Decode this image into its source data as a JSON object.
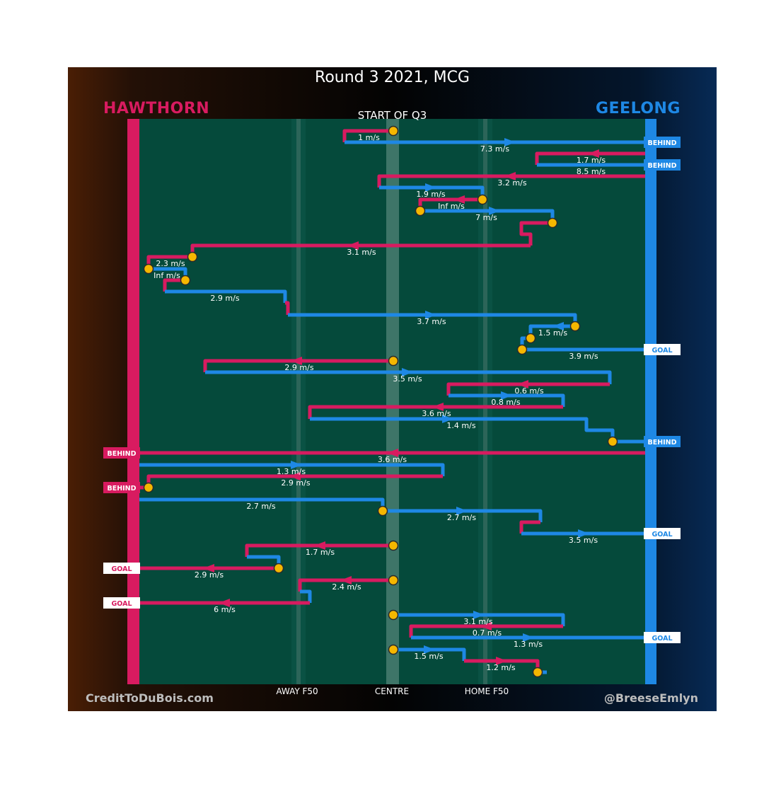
{
  "title": "Round 3 2021, MCG",
  "period_label": "START OF Q3",
  "teams": {
    "home": {
      "name": "HAWTHORN",
      "color": "#d81b60"
    },
    "away": {
      "name": "GEELONG",
      "color": "#1e88e5"
    }
  },
  "zones": {
    "away_f50": "AWAY F50",
    "centre": "CENTRE",
    "home_f50": "HOME F50"
  },
  "credits": {
    "left": "CreditToDuBois.com",
    "right": "@BreeseEmlyn"
  },
  "colors": {
    "field": "#054a3b",
    "ball_marker": "#f5b700",
    "outcome_away_bg": "#1e88e5",
    "outcome_home_bg": "#d81b60"
  },
  "chart_data": {
    "type": "line",
    "x_axis": [
      "AWAY F50",
      "CENTRE",
      "HOME F50"
    ],
    "chains": [
      {
        "team": "home",
        "label": "1 m/s",
        "start": [
          556,
          185
        ],
        "points": [
          [
            556,
            185
          ],
          [
            487,
            185
          ],
          [
            487,
            201
          ]
        ]
      },
      {
        "team": "away",
        "label": "7.3 m/s",
        "points": [
          [
            487,
            201
          ],
          [
            912,
            201
          ]
        ],
        "outcome": "BEHIND",
        "arrow": [
          720,
          201
        ]
      },
      {
        "team": "home",
        "label": "1.7 m/s",
        "points": [
          [
            912,
            217
          ],
          [
            759,
            217
          ],
          [
            759,
            233
          ]
        ],
        "arrow": [
          840,
          217
        ]
      },
      {
        "team": "away",
        "label": "8.5 m/s",
        "points": [
          [
            759,
            233
          ],
          [
            912,
            233
          ]
        ],
        "outcome": "BEHIND"
      },
      {
        "team": "home",
        "label": "3.2 m/s",
        "points": [
          [
            912,
            249
          ],
          [
            536,
            249
          ],
          [
            536,
            265
          ]
        ],
        "arrow": [
          722,
          249
        ]
      },
      {
        "team": "away",
        "label": "1.9 m/s",
        "points": [
          [
            536,
            265
          ],
          [
            682,
            265
          ],
          [
            682,
            282
          ]
        ],
        "arrow": [
          608,
          265
        ]
      },
      {
        "team": "home",
        "label": "Inf m/s",
        "start": [
          682,
          282
        ],
        "points": [
          [
            682,
            282
          ],
          [
            594,
            282
          ],
          [
            594,
            298
          ]
        ],
        "arrow": [
          650,
          282
        ]
      },
      {
        "team": "away",
        "label": "7 m/s",
        "start": [
          594,
          298
        ],
        "points": [
          [
            594,
            298
          ],
          [
            781,
            298
          ],
          [
            781,
            315
          ]
        ],
        "arrow": [
          698,
          298
        ]
      },
      {
        "team": "home",
        "label": "",
        "start": [
          781,
          315
        ],
        "points": [
          [
            781,
            315
          ],
          [
            737,
            315
          ],
          [
            737,
            331
          ],
          [
            750,
            331
          ],
          [
            750,
            347
          ]
        ]
      },
      {
        "team": "home",
        "label": "3.1 m/s",
        "points": [
          [
            750,
            347
          ],
          [
            272,
            347
          ],
          [
            272,
            363
          ]
        ],
        "arrow": [
          500,
          347
        ]
      },
      {
        "team": "home",
        "label": "2.3 m/s",
        "start": [
          272,
          363
        ],
        "points": [
          [
            272,
            363
          ],
          [
            210,
            363
          ],
          [
            210,
            380
          ]
        ]
      },
      {
        "team": "away",
        "label": "Inf m/s",
        "start": [
          210,
          380
        ],
        "points": [
          [
            210,
            380
          ],
          [
            262,
            380
          ],
          [
            262,
            396
          ]
        ]
      },
      {
        "team": "home",
        "label": "",
        "start": [
          262,
          396
        ],
        "points": [
          [
            262,
            396
          ],
          [
            233,
            396
          ],
          [
            233,
            412
          ]
        ]
      },
      {
        "team": "away",
        "label": "2.9 m/s",
        "points": [
          [
            233,
            412
          ],
          [
            403,
            412
          ],
          [
            403,
            428
          ]
        ]
      },
      {
        "team": "home",
        "label": "",
        "points": [
          [
            403,
            428
          ],
          [
            407,
            428
          ],
          [
            407,
            445
          ]
        ]
      },
      {
        "team": "away",
        "label": "3.7 m/s",
        "points": [
          [
            407,
            445
          ],
          [
            813,
            445
          ],
          [
            813,
            461
          ]
        ],
        "arrow": [
          608,
          445
        ]
      },
      {
        "team": "away",
        "label": "1.5 m/s",
        "start": [
          813,
          461
        ],
        "points": [
          [
            813,
            461
          ],
          [
            750,
            461
          ],
          [
            750,
            478
          ]
        ],
        "arrow": [
          790,
          461
        ]
      },
      {
        "team": "away",
        "label": "",
        "start": [
          750,
          478
        ],
        "points": [
          [
            750,
            478
          ],
          [
            738,
            478
          ],
          [
            738,
            494
          ]
        ]
      },
      {
        "team": "away",
        "label": "3.9 m/s",
        "start": [
          738,
          494
        ],
        "points": [
          [
            738,
            494
          ],
          [
            912,
            494
          ]
        ],
        "outcome": "GOAL"
      },
      {
        "team": "home",
        "label": "2.9 m/s",
        "start": [
          556,
          510
        ],
        "points": [
          [
            556,
            510
          ],
          [
            290,
            510
          ],
          [
            290,
            526
          ]
        ],
        "arrow": [
          420,
          510
        ]
      },
      {
        "team": "away",
        "label": "3.5 m/s",
        "points": [
          [
            290,
            526
          ],
          [
            862,
            526
          ],
          [
            862,
            543
          ]
        ],
        "arrow": [
          575,
          526
        ]
      },
      {
        "team": "home",
        "label": "0.6 m/s",
        "points": [
          [
            862,
            543
          ],
          [
            634,
            543
          ],
          [
            634,
            559
          ]
        ],
        "arrow": [
          740,
          543
        ]
      },
      {
        "team": "away",
        "label": "0.8 m/s",
        "points": [
          [
            634,
            559
          ],
          [
            796,
            559
          ],
          [
            796,
            575
          ]
        ],
        "arrow": [
          715,
          559
        ]
      },
      {
        "team": "home",
        "label": "3.6 m/s",
        "points": [
          [
            796,
            575
          ],
          [
            438,
            575
          ],
          [
            438,
            592
          ]
        ],
        "arrow": [
          620,
          575
        ]
      },
      {
        "team": "away",
        "label": "1.4 m/s",
        "points": [
          [
            438,
            592
          ],
          [
            829,
            592
          ],
          [
            829,
            608
          ],
          [
            866,
            608
          ],
          [
            866,
            624
          ]
        ],
        "arrow": [
          632,
          592
        ]
      },
      {
        "team": "away",
        "label": "",
        "start": [
          866,
          624
        ],
        "points": [
          [
            866,
            624
          ],
          [
            912,
            624
          ]
        ],
        "outcome": "BEHIND"
      },
      {
        "team": "home",
        "label": "3.6 m/s",
        "points": [
          [
            912,
            640
          ],
          [
            197,
            640
          ]
        ],
        "outcome": "BEHIND",
        "arrow": [
          556,
          640
        ]
      },
      {
        "team": "away",
        "label": "1.3 m/s",
        "points": [
          [
            197,
            657
          ],
          [
            626,
            657
          ],
          [
            626,
            673
          ]
        ],
        "arrow": [
          418,
          657
        ]
      },
      {
        "team": "home",
        "label": "2.9 m/s",
        "points": [
          [
            626,
            673
          ],
          [
            210,
            673
          ],
          [
            210,
            689
          ]
        ],
        "arrow": [
          418,
          673
        ]
      },
      {
        "team": "home",
        "label": "",
        "start": [
          210,
          689
        ],
        "points": [
          [
            210,
            689
          ],
          [
            197,
            689
          ]
        ],
        "outcome": "BEHIND"
      },
      {
        "team": "away",
        "label": "2.7 m/s",
        "points": [
          [
            197,
            706
          ],
          [
            541,
            706
          ],
          [
            541,
            722
          ]
        ]
      },
      {
        "team": "away",
        "label": "2.7 m/s",
        "start": [
          541,
          722
        ],
        "points": [
          [
            541,
            722
          ],
          [
            764,
            722
          ],
          [
            764,
            738
          ]
        ],
        "arrow": [
          652,
          722
        ]
      },
      {
        "team": "home",
        "label": "",
        "points": [
          [
            764,
            738
          ],
          [
            737,
            738
          ],
          [
            737,
            754
          ]
        ]
      },
      {
        "team": "away",
        "label": "3.5 m/s",
        "points": [
          [
            737,
            754
          ],
          [
            912,
            754
          ]
        ],
        "outcome": "GOAL",
        "arrow": [
          824,
          754
        ]
      },
      {
        "team": "home",
        "label": "1.7 m/s",
        "start": [
          556,
          771
        ],
        "points": [
          [
            556,
            771
          ],
          [
            349,
            771
          ],
          [
            349,
            787
          ]
        ],
        "arrow": [
          453,
          771
        ]
      },
      {
        "team": "away",
        "label": "",
        "points": [
          [
            349,
            787
          ],
          [
            394,
            787
          ],
          [
            394,
            803
          ]
        ]
      },
      {
        "team": "home",
        "label": "2.9 m/s",
        "start": [
          394,
          803
        ],
        "points": [
          [
            394,
            803
          ],
          [
            197,
            803
          ]
        ],
        "outcome": "GOAL",
        "arrow": [
          296,
          803
        ]
      },
      {
        "team": "home",
        "label": "2.4 m/s",
        "start": [
          556,
          820
        ],
        "points": [
          [
            556,
            820
          ],
          [
            424,
            820
          ],
          [
            424,
            836
          ]
        ],
        "arrow": [
          490,
          820
        ]
      },
      {
        "team": "away",
        "label": "",
        "points": [
          [
            424,
            836
          ],
          [
            438,
            836
          ],
          [
            438,
            852
          ]
        ]
      },
      {
        "team": "home",
        "label": "6 m/s",
        "points": [
          [
            438,
            852
          ],
          [
            197,
            852
          ]
        ],
        "outcome": "GOAL",
        "arrow": [
          318,
          852
        ]
      },
      {
        "team": "away",
        "label": "3.1 m/s",
        "start": [
          556,
          869
        ],
        "points": [
          [
            556,
            869
          ],
          [
            796,
            869
          ],
          [
            796,
            885
          ]
        ],
        "arrow": [
          676,
          869
        ]
      },
      {
        "team": "home",
        "label": "0.7 m/s",
        "points": [
          [
            796,
            885
          ],
          [
            581,
            885
          ],
          [
            581,
            901
          ]
        ],
        "arrow": [
          688,
          885
        ]
      },
      {
        "team": "away",
        "label": "1.3 m/s",
        "points": [
          [
            581,
            901
          ],
          [
            912,
            901
          ]
        ],
        "outcome": "GOAL",
        "arrow": [
          746,
          901
        ]
      },
      {
        "team": "away",
        "label": "1.5 m/s",
        "start": [
          556,
          918
        ],
        "points": [
          [
            556,
            918
          ],
          [
            656,
            918
          ],
          [
            656,
            934
          ]
        ],
        "arrow": [
          606,
          918
        ]
      },
      {
        "team": "home",
        "label": "1.2 m/s",
        "points": [
          [
            656,
            934
          ],
          [
            760,
            934
          ],
          [
            760,
            950
          ]
        ],
        "arrow": [
          708,
          934
        ]
      },
      {
        "team": "away",
        "label": "",
        "start": [
          760,
          950
        ],
        "points": [
          [
            760,
            950
          ],
          [
            773,
            950
          ]
        ]
      }
    ]
  }
}
